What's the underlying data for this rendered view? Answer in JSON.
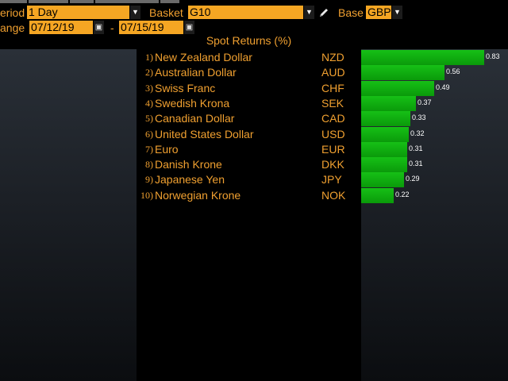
{
  "colors": {
    "accent": "#f0a030",
    "field_bg": "#f5a623",
    "bar_green": "#0fb00f",
    "background": "#000000"
  },
  "controls": {
    "period_label": "eriod",
    "period_value": "1 Day",
    "basket_label": "Basket",
    "basket_value": "G10",
    "base_label": "Base",
    "base_value": "GBP",
    "range_label": "ange",
    "range_start": "07/12/19",
    "range_separator": "-",
    "range_end": "07/15/19"
  },
  "chart_data": {
    "type": "bar",
    "title": "Spot Returns (%)",
    "orientation": "horizontal",
    "xlim": [
      0,
      0.83
    ],
    "ranks": [
      "1)",
      "2)",
      "3)",
      "4)",
      "5)",
      "6)",
      "7)",
      "8)",
      "9)",
      "10)"
    ],
    "categories": [
      "New Zealand Dollar",
      "Australian Dollar",
      "Swiss Franc",
      "Swedish Krona",
      "Canadian Dollar",
      "United States Dollar",
      "Euro",
      "Danish Krone",
      "Japanese Yen",
      "Norwegian Krone"
    ],
    "codes": [
      "NZD",
      "AUD",
      "CHF",
      "SEK",
      "CAD",
      "USD",
      "EUR",
      "DKK",
      "JPY",
      "NOK"
    ],
    "values": [
      0.83,
      0.56,
      0.49,
      0.37,
      0.33,
      0.32,
      0.31,
      0.31,
      0.29,
      0.22
    ],
    "labels": [
      "0.83",
      "0.56",
      "0.49",
      "0.37",
      "0.33",
      "0.32",
      "0.31",
      "0.31",
      "0.29",
      "0.22"
    ]
  }
}
